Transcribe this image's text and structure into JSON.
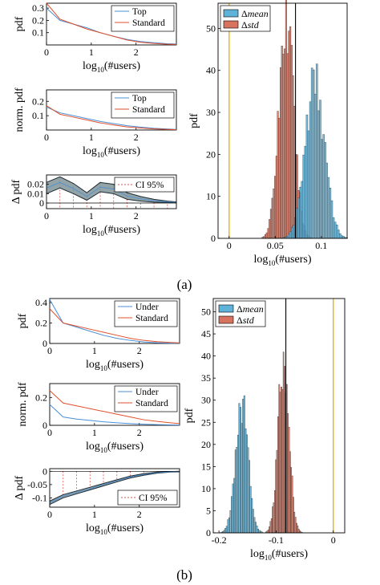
{
  "colors": {
    "blue": "#4a8fd6",
    "red": "#e0502c",
    "hist_blue": "#5fb3d9",
    "hist_red": "#d7735e",
    "yellow": "#e8b400",
    "band": "#7f9499",
    "ci": "#e05050"
  },
  "panel_labels": {
    "a": "(a)",
    "b": "(b)"
  },
  "chart_data": [
    {
      "type": "line",
      "group": "a",
      "ylabel": "pdf",
      "xlabel_main": "log",
      "xlabel_sub": "10",
      "xlabel_rest": "(#users)",
      "xlim": [
        0,
        2.9
      ],
      "ylim": [
        0,
        0.34
      ],
      "xticks": [
        "0",
        "1",
        "2"
      ],
      "yticks": [
        "0.1",
        "0.2",
        "0.3"
      ],
      "x": [
        0,
        0.3,
        0.6,
        0.9,
        1.2,
        1.5,
        1.8,
        2.1,
        2.4,
        2.7,
        2.9
      ],
      "series": [
        {
          "name": "Top",
          "values": [
            0.3,
            0.2,
            0.17,
            0.14,
            0.1,
            0.07,
            0.045,
            0.028,
            0.018,
            0.01,
            0.007
          ]
        },
        {
          "name": "Standard",
          "values": [
            0.34,
            0.21,
            0.17,
            0.13,
            0.1,
            0.07,
            0.04,
            0.022,
            0.012,
            0.006,
            0.004
          ]
        }
      ],
      "legend": "top-right"
    },
    {
      "type": "line",
      "group": "a",
      "ylabel": "norm. pdf",
      "xlabel_main": "log",
      "xlabel_sub": "10",
      "xlabel_rest": "(#users)",
      "xlim": [
        0,
        2.9
      ],
      "ylim": [
        0,
        0.28
      ],
      "xticks": [
        "0",
        "1",
        "2"
      ],
      "yticks": [
        "0.1",
        "0.2"
      ],
      "x": [
        0,
        0.3,
        0.6,
        0.9,
        1.2,
        1.5,
        1.8,
        2.1,
        2.4,
        2.7,
        2.9
      ],
      "series": [
        {
          "name": "Top",
          "values": [
            0.16,
            0.12,
            0.1,
            0.08,
            0.06,
            0.045,
            0.03,
            0.02,
            0.012,
            0.007,
            0.004
          ]
        },
        {
          "name": "Standard",
          "values": [
            0.17,
            0.11,
            0.09,
            0.07,
            0.05,
            0.035,
            0.022,
            0.014,
            0.008,
            0.004,
            0.002
          ]
        }
      ],
      "legend": "top-right"
    },
    {
      "type": "area",
      "group": "a",
      "ylabel": "Δ pdf",
      "xlabel_main": "log",
      "xlabel_sub": "10",
      "xlabel_rest": "(#users)",
      "xlim": [
        0,
        2.9
      ],
      "ylim": [
        -0.006,
        0.03
      ],
      "xticks": [
        "0",
        "1",
        "2"
      ],
      "yticks": [
        "0",
        "0.01",
        "0.02"
      ],
      "x": [
        0,
        0.3,
        0.6,
        0.9,
        1.2,
        1.5,
        1.8,
        2.1,
        2.4,
        2.7,
        2.9
      ],
      "lower": [
        0.01,
        0.016,
        0.01,
        0.003,
        0.012,
        0.01,
        0.004,
        0.002,
        0.001,
        0.0005,
        0.0003
      ],
      "upper": [
        0.022,
        0.028,
        0.021,
        0.011,
        0.022,
        0.02,
        0.011,
        0.007,
        0.004,
        0.002,
        0.0012
      ],
      "series": [
        {
          "name": "CI 95%"
        }
      ],
      "legend": "top-right"
    },
    {
      "type": "histogram",
      "group": "a",
      "ylabel": "pdf",
      "xlabel_main": "log",
      "xlabel_sub": "10",
      "xlabel_rest": "(#users)",
      "xlim": [
        -0.012,
        0.128
      ],
      "ylim": [
        0,
        56
      ],
      "xticks": [
        "0",
        "0.05",
        "0.1"
      ],
      "xtick_values": [
        0,
        0.05,
        0.1
      ],
      "yticks": [
        "0",
        "10",
        "20",
        "30",
        "40",
        "50"
      ],
      "ytick_values": [
        0,
        10,
        20,
        30,
        40,
        50
      ],
      "vline_yellow": 0,
      "vline_black": 0.072,
      "series": [
        {
          "name": "mean",
          "prefix": "Δ",
          "center": 0.093,
          "sd": 0.0105,
          "peak": 37,
          "bin": 0.0018
        },
        {
          "name": "std",
          "prefix": "Δ",
          "center": 0.062,
          "sd": 0.008,
          "peak": 52,
          "bin": 0.0015
        }
      ],
      "legend": "top-left"
    },
    {
      "type": "line",
      "group": "b",
      "ylabel": "pdf",
      "xlabel_main": "log",
      "xlabel_sub": "10",
      "xlabel_rest": "(#users)",
      "xlim": [
        0,
        2.9
      ],
      "ylim": [
        0,
        0.44
      ],
      "xticks": [
        "0",
        "1",
        "2"
      ],
      "yticks": [
        "0",
        "0.2",
        "0.4"
      ],
      "x": [
        0,
        0.3,
        0.6,
        0.9,
        1.2,
        1.5,
        1.8,
        2.1,
        2.4,
        2.7,
        2.9
      ],
      "series": [
        {
          "name": "Under",
          "values": [
            0.43,
            0.2,
            0.16,
            0.12,
            0.08,
            0.05,
            0.03,
            0.015,
            0.007,
            0.003,
            0.002
          ]
        },
        {
          "name": "Standard",
          "values": [
            0.34,
            0.2,
            0.17,
            0.14,
            0.11,
            0.08,
            0.05,
            0.03,
            0.018,
            0.01,
            0.006
          ]
        }
      ],
      "legend": "top-right"
    },
    {
      "type": "line",
      "group": "b",
      "ylabel": "norm. pdf",
      "xlabel_main": "log",
      "xlabel_sub": "10",
      "xlabel_rest": "(#users)",
      "xlim": [
        0,
        2.9
      ],
      "ylim": [
        0,
        0.3
      ],
      "xticks": [
        "0",
        "1",
        "2"
      ],
      "yticks": [
        "0",
        "0.2"
      ],
      "x": [
        0,
        0.3,
        0.6,
        0.9,
        1.2,
        1.5,
        1.8,
        2.1,
        2.4,
        2.7,
        2.9
      ],
      "series": [
        {
          "name": "Under",
          "values": [
            0.15,
            0.06,
            0.045,
            0.035,
            0.025,
            0.018,
            0.012,
            0.008,
            0.005,
            0.003,
            0.002
          ]
        },
        {
          "name": "Standard",
          "values": [
            0.25,
            0.16,
            0.14,
            0.12,
            0.1,
            0.08,
            0.06,
            0.04,
            0.028,
            0.018,
            0.012
          ]
        }
      ],
      "legend": "top-right"
    },
    {
      "type": "area",
      "group": "b",
      "ylabel": "Δ pdf",
      "xlabel_main": "log",
      "xlabel_sub": "10",
      "xlabel_rest": "(#users)",
      "xlim": [
        0,
        2.9
      ],
      "ylim": [
        -0.135,
        0.01
      ],
      "xticks": [
        "0",
        "1",
        "2"
      ],
      "yticks": [
        "-0.1",
        "-0.05",
        "0"
      ],
      "x": [
        0,
        0.3,
        0.6,
        0.9,
        1.2,
        1.5,
        1.8,
        2.1,
        2.4,
        2.7,
        2.9
      ],
      "lower": [
        -0.125,
        -0.1,
        -0.085,
        -0.07,
        -0.055,
        -0.04,
        -0.025,
        -0.015,
        -0.007,
        -0.003,
        -0.002
      ],
      "upper": [
        -0.112,
        -0.088,
        -0.074,
        -0.06,
        -0.046,
        -0.032,
        -0.018,
        -0.009,
        -0.003,
        -0.001,
        0
      ],
      "series": [
        {
          "name": "CI 95%"
        }
      ],
      "legend": "bottom-right"
    },
    {
      "type": "histogram",
      "group": "b",
      "ylabel": "pdf",
      "xlabel_main": "log",
      "xlabel_sub": "10",
      "xlabel_rest": "(#users)",
      "xlim": [
        -0.21,
        0.02
      ],
      "ylim": [
        0,
        53
      ],
      "xticks": [
        "-0.2",
        "-0.1",
        "0"
      ],
      "xtick_values": [
        -0.2,
        -0.1,
        0
      ],
      "yticks": [
        "0",
        "5",
        "10",
        "15",
        "20",
        "25",
        "30",
        "35",
        "40",
        "45",
        "50"
      ],
      "ytick_values": [
        0,
        5,
        10,
        15,
        20,
        25,
        30,
        35,
        40,
        45,
        50
      ],
      "vline_yellow": 0,
      "vline_black": -0.083,
      "series": [
        {
          "name": "mean",
          "prefix": "Δ",
          "center": -0.16,
          "sd": 0.011,
          "peak": 30,
          "bin": 0.0022
        },
        {
          "name": "std",
          "prefix": "Δ",
          "center": -0.087,
          "sd": 0.0095,
          "peak": 40,
          "bin": 0.0019
        }
      ],
      "legend": "top-left"
    }
  ]
}
